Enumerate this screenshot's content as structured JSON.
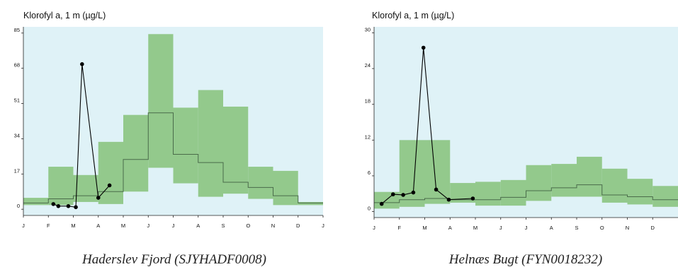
{
  "colors": {
    "plot_background": "#dff2f7",
    "band_fill": "#93c98c",
    "median_line": "#4a6b4a",
    "observed_series": "#000000",
    "axis": "#222222"
  },
  "chart_data": [
    {
      "type": "line",
      "title": "Klorofyl a, 1 m (µg/L)",
      "caption": "Haderslev Fjord (SJYHADF0008)",
      "xlabel": "",
      "ylabel": "",
      "month_ticks": [
        "J",
        "F",
        "M",
        "A",
        "M",
        "J",
        "J",
        "A",
        "S",
        "O",
        "N",
        "D",
        "J"
      ],
      "yticks": [
        0,
        17,
        34,
        51,
        68,
        85
      ],
      "ylim": [
        -3,
        88
      ],
      "grid": false,
      "band": {
        "months": [
          "Jan",
          "Feb",
          "Mar",
          "Apr",
          "May",
          "Jun",
          "Jul",
          "Aug",
          "Sep",
          "Oct",
          "Nov",
          "Dec"
        ],
        "lower": [
          2,
          2,
          3.5,
          2.5,
          8.5,
          20,
          12.5,
          6,
          7.5,
          5,
          2,
          2
        ],
        "median": [
          3,
          5,
          6.5,
          8.5,
          24,
          46.5,
          26.5,
          22.5,
          13,
          10.5,
          6.5,
          3
        ],
        "upper": [
          5.5,
          20.5,
          16.5,
          32.5,
          45.5,
          84.5,
          49,
          57.5,
          49.5,
          20.5,
          18.5,
          3.5
        ]
      },
      "series": [
        {
          "x": [
            1.2,
            1.4,
            1.8,
            2.1,
            2.35,
            3.0,
            3.45
          ],
          "y": [
            2.5,
            1.5,
            1.5,
            1,
            70,
            5.5,
            11.5
          ]
        }
      ]
    },
    {
      "type": "line",
      "title": "Klorofyl a, 1 m (µg/L)",
      "caption": "Helnæs Bugt (FYN0018232)",
      "xlabel": "",
      "ylabel": "",
      "month_ticks": [
        "J",
        "F",
        "M",
        "A",
        "M",
        "J",
        "J",
        "A",
        "S",
        "O",
        "N",
        "D"
      ],
      "yticks": [
        0,
        6,
        12,
        18,
        24,
        30
      ],
      "ylim": [
        -1,
        31
      ],
      "grid": false,
      "band": {
        "months": [
          "Jan",
          "Feb",
          "Mar",
          "Apr",
          "May",
          "Jun",
          "Jul",
          "Aug",
          "Sep",
          "Oct",
          "Nov",
          "Dec"
        ],
        "lower": [
          0.5,
          0.8,
          1.3,
          1.5,
          1,
          1,
          1.8,
          2.5,
          2.5,
          1.5,
          1.2,
          0.8
        ],
        "median": [
          1.5,
          2,
          2.2,
          2,
          2,
          2.4,
          3.5,
          4,
          4.5,
          2.8,
          2.5,
          2
        ],
        "upper": [
          3.3,
          12,
          12,
          4.8,
          5,
          5.3,
          7.8,
          8,
          9.2,
          7.2,
          5.5,
          4.3
        ]
      },
      "series": [
        {
          "x": [
            0.3,
            0.75,
            1.15,
            1.55,
            1.95,
            2.45,
            2.95,
            3.9
          ],
          "y": [
            1.3,
            2.9,
            2.8,
            3.2,
            27.5,
            3.7,
            2.0,
            2.2
          ]
        }
      ]
    }
  ]
}
